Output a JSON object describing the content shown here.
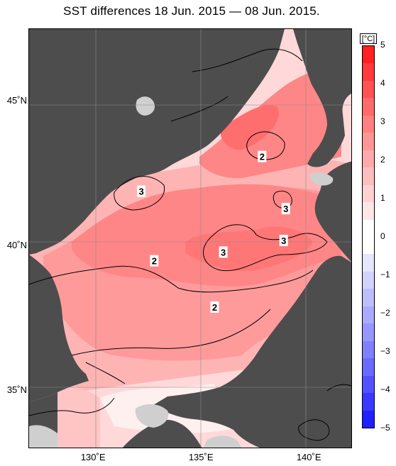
{
  "title": "SST differences 18 Jun. 2015 — 08 Jun. 2015.",
  "map": {
    "lat_labels": [
      {
        "text": "45˚N",
        "value": 45
      },
      {
        "text": "40˚N",
        "value": 40
      },
      {
        "text": "35˚N",
        "value": 35
      }
    ],
    "lon_labels": [
      {
        "text": "130˚E",
        "value": 130
      },
      {
        "text": "135˚E",
        "value": 135
      },
      {
        "text": "140˚E",
        "value": 140
      }
    ],
    "contour_labels": [
      {
        "text": "2",
        "lon": 137.8,
        "lat": 43.1
      },
      {
        "text": "3",
        "lon": 132.2,
        "lat": 41.9
      },
      {
        "text": "3",
        "lon": 138.9,
        "lat": 41.3
      },
      {
        "text": "3",
        "lon": 138.8,
        "lat": 40.2
      },
      {
        "text": "3",
        "lon": 136.0,
        "lat": 39.8
      },
      {
        "text": "2",
        "lon": 132.8,
        "lat": 39.5
      },
      {
        "text": "2",
        "lon": 135.6,
        "lat": 37.9
      }
    ],
    "colors": {
      "land": "#4d4d4d",
      "no_data": "#cfcfcf",
      "grid": "#8a8a8a"
    }
  },
  "colorbar": {
    "unit": "[°C]",
    "ticks": [
      "5",
      "4",
      "3",
      "2",
      "1",
      "0",
      "−1",
      "−2",
      "−3",
      "−4",
      "−5"
    ],
    "colors": [
      "#ff2020",
      "#ff3a3a",
      "#ff5252",
      "#ff6a6a",
      "#ff8080",
      "#ff9696",
      "#ffaaaa",
      "#ffbebe",
      "#ffd2d2",
      "#ffe6e6",
      "#ffffff",
      "#ffffff",
      "#e6e6ff",
      "#d2d2ff",
      "#bebeff",
      "#aaaaff",
      "#9696ff",
      "#8080ff",
      "#6a6aff",
      "#5252ff",
      "#3a3aff",
      "#2020ff"
    ]
  }
}
